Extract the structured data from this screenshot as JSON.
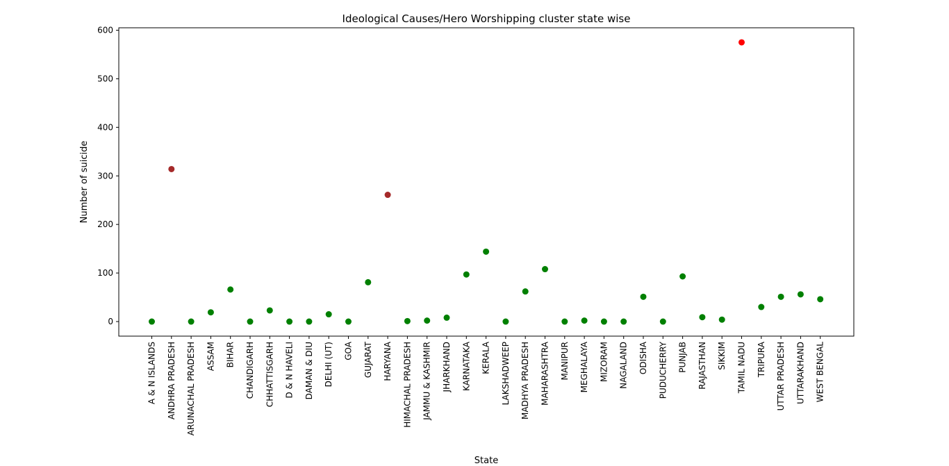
{
  "chart_data": {
    "type": "scatter",
    "title": "Ideological Causes/Hero Worshipping cluster state wise",
    "xlabel": "State",
    "ylabel": "Number of suicide",
    "ylim": [
      -30,
      605
    ],
    "yticks": [
      0,
      100,
      200,
      300,
      400,
      500,
      600
    ],
    "grid": false,
    "categories": [
      "A & N ISLANDS",
      "ANDHRA PRADESH",
      "ARUNACHAL PRADESH",
      "ASSAM",
      "BIHAR",
      "CHANDIGARH",
      "CHHATTISGARH",
      "D & N HAVELI",
      "DAMAN & DIU",
      "DELHI (UT)",
      "GOA",
      "GUJARAT",
      "HARYANA",
      "HIMACHAL PRADESH",
      "JAMMU & KASHMIR",
      "JHARKHAND",
      "KARNATAKA",
      "KERALA",
      "LAKSHADWEEP",
      "MADHYA PRADESH",
      "MAHARASHTRA",
      "MANIPUR",
      "MEGHALAYA",
      "MIZORAM",
      "NAGALAND",
      "ODISHA",
      "PUDUCHERRY",
      "PUNJAB",
      "RAJASTHAN",
      "SIKKIM",
      "TAMIL NADU",
      "TRIPURA",
      "UTTAR PRADESH",
      "UTTARAKHAND",
      "WEST BENGAL"
    ],
    "values": [
      0,
      314,
      0,
      19,
      66,
      0,
      23,
      0,
      0,
      15,
      0,
      81,
      261,
      1,
      2,
      8,
      97,
      144,
      0,
      62,
      108,
      0,
      2,
      0,
      0,
      51,
      0,
      93,
      9,
      4,
      575,
      30,
      51,
      56,
      46
    ],
    "point_colors": [
      "#008000",
      "#a52a2a",
      "#008000",
      "#008000",
      "#008000",
      "#008000",
      "#008000",
      "#008000",
      "#008000",
      "#008000",
      "#008000",
      "#008000",
      "#a52a2a",
      "#008000",
      "#008000",
      "#008000",
      "#008000",
      "#008000",
      "#008000",
      "#008000",
      "#008000",
      "#008000",
      "#008000",
      "#008000",
      "#008000",
      "#008000",
      "#008000",
      "#008000",
      "#008000",
      "#008000",
      "#ff0000",
      "#008000",
      "#008000",
      "#008000",
      "#008000"
    ]
  }
}
